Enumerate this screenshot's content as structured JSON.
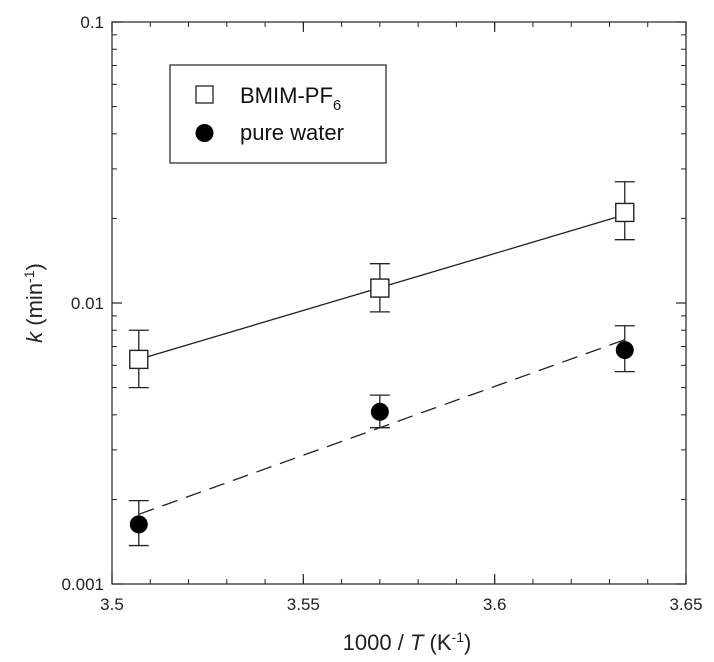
{
  "chart_data": {
    "type": "scatter",
    "title": "",
    "xlabel": {
      "prefix": "1000 / ",
      "variable": "T",
      "unit_open": " (K",
      "unit_sup": "-1",
      "unit_close": ")"
    },
    "ylabel": {
      "variable": "k",
      "unit_open": " (min",
      "unit_sup": "-1",
      "unit_close": ")"
    },
    "xlim": [
      3.5,
      3.65
    ],
    "ylim": [
      0.001,
      0.1
    ],
    "yscale": "log",
    "grid": false,
    "legend_position": "top-left",
    "x_ticks": [
      {
        "value": 3.5,
        "label": "3.5"
      },
      {
        "value": 3.55,
        "label": "3.55"
      },
      {
        "value": 3.6,
        "label": "3.6"
      },
      {
        "value": 3.65,
        "label": "3.65"
      }
    ],
    "y_ticks": [
      {
        "value": 0.001,
        "label": "0.001"
      },
      {
        "value": 0.01,
        "label": "0.01"
      },
      {
        "value": 0.1,
        "label": "0.1"
      }
    ],
    "series": [
      {
        "name": "BMIM-PF",
        "name_sub": "6",
        "marker": "open-square",
        "line": "solid",
        "x": [
          3.507,
          3.57,
          3.634
        ],
        "y": [
          0.0063,
          0.0113,
          0.021
        ],
        "y_err_low": [
          0.005,
          0.0093,
          0.0168
        ],
        "y_err_high": [
          0.008,
          0.0138,
          0.027
        ],
        "fit": [
          [
            3.507,
            0.0063
          ],
          [
            3.634,
            0.0206
          ]
        ]
      },
      {
        "name": "pure water",
        "marker": "filled-circle",
        "line": "dashed",
        "x": [
          3.507,
          3.57,
          3.634
        ],
        "y": [
          0.00163,
          0.0041,
          0.0068
        ],
        "y_err_low": [
          0.00137,
          0.0036,
          0.0057
        ],
        "y_err_high": [
          0.00198,
          0.0047,
          0.0083
        ],
        "fit": [
          [
            3.507,
            0.00177
          ],
          [
            3.634,
            0.0074
          ]
        ]
      }
    ]
  },
  "colors": {
    "axis": "#222222",
    "marker_fill": "#000000",
    "line": "#222222"
  }
}
